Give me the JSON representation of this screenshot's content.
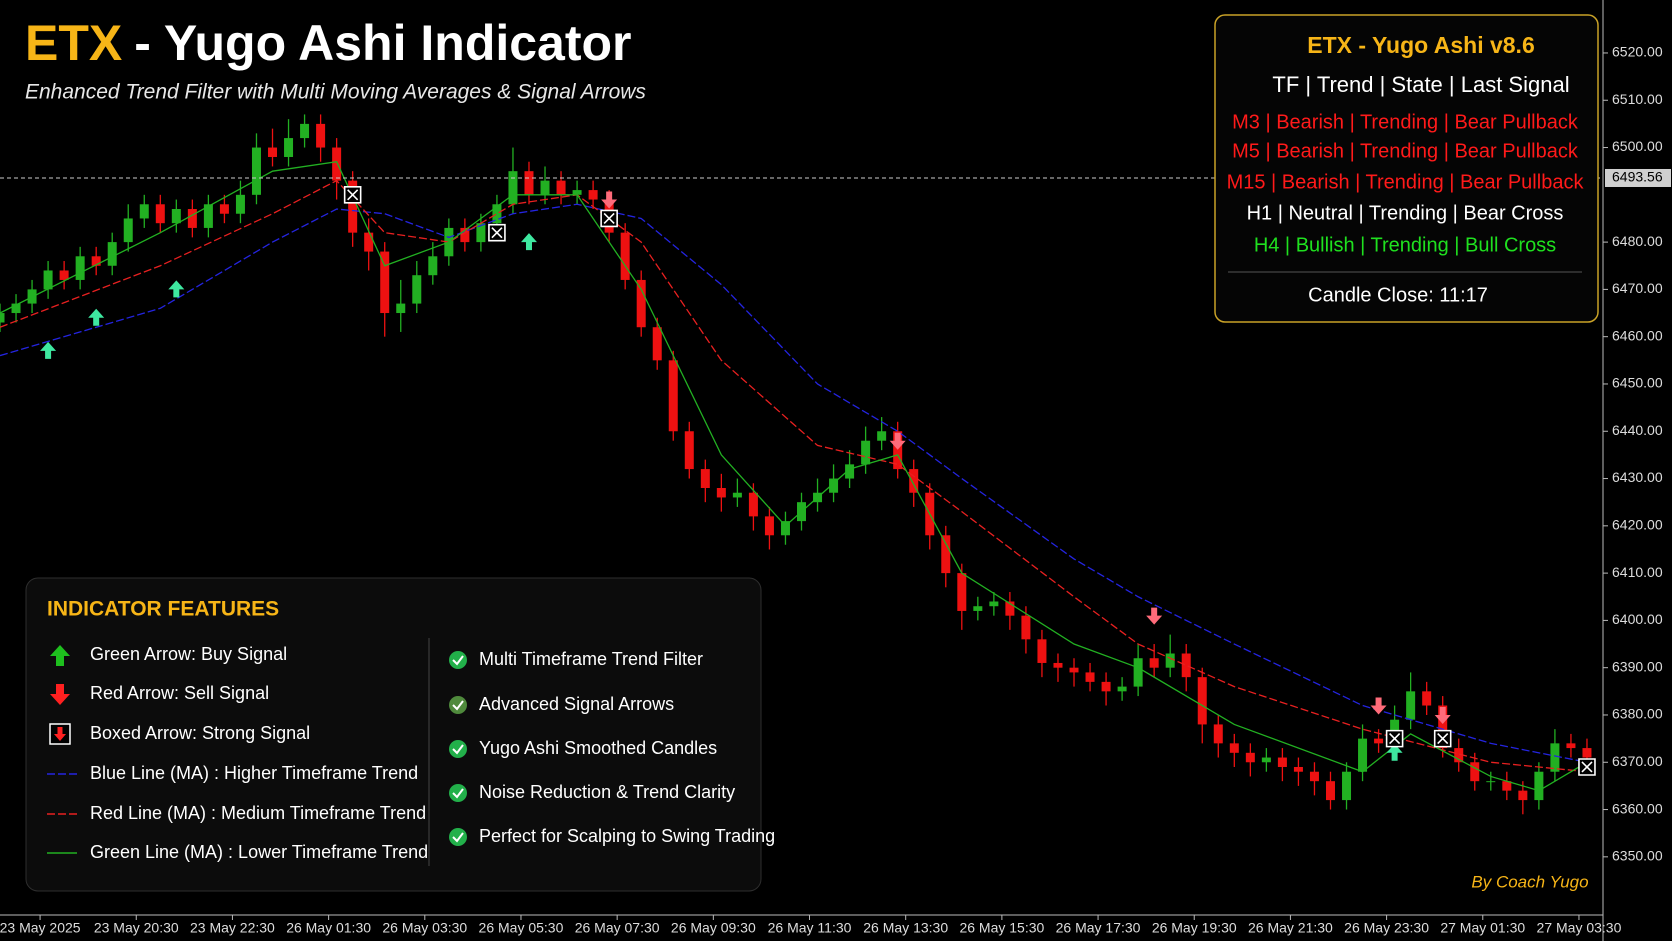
{
  "chart_data": {
    "type": "candlestick",
    "title_highlight": "ETX",
    "title": "- Yugo Ashi Indicator",
    "subtitle": "Enhanced Trend Filter with Multi Moving Averages & Signal Arrows",
    "up_color": "#22b022",
    "down_color": "#ee1111",
    "x": [
      0,
      1,
      2,
      3,
      4,
      5,
      6,
      7,
      8,
      9,
      10,
      11,
      12,
      13,
      14,
      15,
      16,
      17,
      18,
      19,
      20,
      21,
      22,
      23,
      24,
      25,
      26,
      27,
      28,
      29,
      30,
      31,
      32,
      33,
      34,
      35,
      36,
      37,
      38,
      39,
      40,
      41,
      42,
      43,
      44,
      45,
      46,
      47,
      48,
      49,
      50,
      51,
      52,
      53,
      54,
      55,
      56,
      57,
      58,
      59,
      60,
      61,
      62,
      63,
      64,
      65,
      66,
      67,
      68,
      69,
      70,
      71,
      72,
      73,
      74,
      75,
      76,
      77,
      78,
      79,
      80,
      81,
      82,
      83,
      84,
      85,
      86,
      87,
      88,
      89,
      90,
      91,
      92,
      93,
      94,
      95,
      96,
      97,
      98,
      99
    ],
    "open": [
      6463,
      6465,
      6467,
      6470,
      6474,
      6472,
      6477,
      6475,
      6480,
      6485,
      6488,
      6484,
      6487,
      6483,
      6488,
      6486,
      6490,
      6500,
      6498,
      6502,
      6505,
      6500,
      6493,
      6482,
      6478,
      6465,
      6467,
      6473,
      6477,
      6483,
      6480,
      6484,
      6488,
      6495,
      6490,
      6493,
      6490,
      6491,
      6489,
      6482,
      6472,
      6462,
      6455,
      6440,
      6432,
      6428,
      6426,
      6427,
      6422,
      6418,
      6421,
      6425,
      6427,
      6430,
      6433,
      6438,
      6440,
      6432,
      6427,
      6418,
      6410,
      6402,
      6403,
      6404,
      6401,
      6396,
      6391,
      6390,
      6389,
      6387,
      6385,
      6386,
      6392,
      6390,
      6393,
      6388,
      6378,
      6374,
      6372,
      6370,
      6371,
      6369,
      6368,
      6366,
      6362,
      6368,
      6375,
      6374,
      6379,
      6385,
      6382,
      6373,
      6370,
      6366,
      6366,
      6364,
      6362,
      6368,
      6374,
      6373
    ],
    "high": [
      6467,
      6469,
      6472,
      6476,
      6476,
      6479,
      6479,
      6482,
      6488,
      6490,
      6490,
      6489,
      6489,
      6490,
      6490,
      6493,
      6503,
      6504,
      6506,
      6507,
      6507,
      6502,
      6495,
      6485,
      6480,
      6472,
      6476,
      6480,
      6485,
      6485,
      6486,
      6490,
      6500,
      6497,
      6496,
      6495,
      6493,
      6493,
      6491,
      6484,
      6474,
      6464,
      6457,
      6442,
      6434,
      6431,
      6430,
      6429,
      6424,
      6423,
      6427,
      6430,
      6433,
      6436,
      6441,
      6443,
      6442,
      6434,
      6429,
      6420,
      6412,
      6405,
      6406,
      6406,
      6403,
      6398,
      6393,
      6392,
      6391,
      6389,
      6388,
      6395,
      6395,
      6397,
      6395,
      6390,
      6380,
      6376,
      6374,
      6373,
      6373,
      6371,
      6370,
      6368,
      6370,
      6378,
      6377,
      6382,
      6389,
      6387,
      6384,
      6375,
      6372,
      6368,
      6368,
      6366,
      6370,
      6377,
      6376,
      6375
    ],
    "low": [
      6461,
      6463,
      6465,
      6468,
      6470,
      6470,
      6473,
      6473,
      6478,
      6483,
      6482,
      6482,
      6481,
      6481,
      6484,
      6484,
      6488,
      6496,
      6496,
      6500,
      6497,
      6489,
      6479,
      6474,
      6460,
      6461,
      6465,
      6471,
      6475,
      6478,
      6478,
      6482,
      6486,
      6488,
      6488,
      6488,
      6488,
      6487,
      6480,
      6470,
      6460,
      6453,
      6438,
      6430,
      6425,
      6423,
      6424,
      6419,
      6415,
      6416,
      6419,
      6423,
      6425,
      6428,
      6431,
      6436,
      6430,
      6424,
      6415,
      6407,
      6398,
      6400,
      6401,
      6398,
      6393,
      6388,
      6387,
      6386,
      6385,
      6382,
      6383,
      6384,
      6388,
      6388,
      6385,
      6374,
      6371,
      6369,
      6367,
      6368,
      6366,
      6365,
      6363,
      6360,
      6360,
      6366,
      6372,
      6372,
      6377,
      6380,
      6371,
      6368,
      6364,
      6364,
      6362,
      6359,
      6360,
      6366,
      6371,
      6369
    ],
    "close": [
      6465,
      6467,
      6470,
      6474,
      6472,
      6477,
      6475,
      6480,
      6485,
      6488,
      6484,
      6487,
      6483,
      6488,
      6486,
      6490,
      6500,
      6498,
      6502,
      6505,
      6500,
      6493,
      6482,
      6478,
      6465,
      6467,
      6473,
      6477,
      6483,
      6480,
      6484,
      6488,
      6495,
      6490,
      6493,
      6490,
      6491,
      6489,
      6482,
      6472,
      6462,
      6455,
      6440,
      6432,
      6428,
      6426,
      6427,
      6422,
      6418,
      6421,
      6425,
      6427,
      6430,
      6433,
      6438,
      6440,
      6432,
      6427,
      6418,
      6410,
      6402,
      6403,
      6404,
      6401,
      6396,
      6391,
      6390,
      6389,
      6387,
      6385,
      6386,
      6392,
      6390,
      6393,
      6388,
      6378,
      6374,
      6372,
      6370,
      6371,
      6369,
      6368,
      6366,
      6362,
      6368,
      6375,
      6374,
      6379,
      6385,
      6382,
      6373,
      6370,
      6366,
      6366,
      6364,
      6362,
      6368,
      6374,
      6373,
      6371
    ],
    "series": [
      {
        "name": "Blue Line (MA) : Higher Timeframe Trend",
        "color": "#2424e0",
        "dashed": true,
        "x": [
          0,
          10,
          17,
          21,
          24,
          28,
          32,
          36,
          40,
          45,
          51,
          56,
          60,
          67,
          71,
          77,
          85,
          93,
          99
        ],
        "values": [
          6456,
          6466,
          6480,
          6487,
          6486,
          6481,
          6486,
          6488,
          6485,
          6471,
          6450,
          6440,
          6430,
          6413,
          6405,
          6395,
          6382,
          6374,
          6370
        ]
      },
      {
        "name": "Red Line (MA) : Medium Timeframe Trend",
        "color": "#e82020",
        "dashed": true,
        "x": [
          0,
          10,
          17,
          21,
          24,
          28,
          32,
          36,
          40,
          45,
          51,
          56,
          60,
          67,
          71,
          77,
          85,
          93,
          99
        ],
        "values": [
          6462,
          6475,
          6486,
          6493,
          6482,
          6480,
          6488,
          6490,
          6480,
          6455,
          6437,
          6433,
          6423,
          6405,
          6395,
          6386,
          6377,
          6370,
          6368
        ]
      },
      {
        "name": "Green Line (MA) : Lower Timeframe Trend",
        "color": "#22b022",
        "dashed": false,
        "x": [
          0,
          10,
          17,
          21,
          24,
          28,
          32,
          36,
          40,
          45,
          49,
          53,
          56,
          60,
          67,
          71,
          77,
          85,
          88,
          93,
          96,
          99
        ],
        "values": [
          6465,
          6482,
          6495,
          6497,
          6475,
          6480,
          6490,
          6490,
          6470,
          6435,
          6420,
          6432,
          6435,
          6410,
          6395,
          6390,
          6378,
          6368,
          6376,
          6367,
          6364,
          6370
        ]
      }
    ],
    "buy_signals": {
      "color": "#3ee8a0",
      "x": [
        3,
        6,
        11,
        33,
        87
      ],
      "y": [
        6457,
        6464,
        6470,
        6480,
        6372
      ]
    },
    "sell_signals": {
      "color": "#ff6b7a",
      "x": [
        38,
        56,
        72,
        86,
        90
      ],
      "y": [
        6489,
        6438,
        6401,
        6382,
        6380
      ]
    },
    "boxed_signals": {
      "x": [
        22,
        31,
        38,
        87,
        90,
        99
      ],
      "y": [
        6490,
        6482,
        6485,
        6375,
        6375,
        6369
      ]
    },
    "current_price": 6493.56,
    "xlim": [
      0,
      100
    ],
    "ylim": [
      6337.7,
      6531.2
    ],
    "xticks": [
      {
        "value": 2.5,
        "label": "23 May 2025"
      },
      {
        "value": 8.5,
        "label": "23 May 20:30"
      },
      {
        "value": 14.5,
        "label": "23 May 22:30"
      },
      {
        "value": 20.5,
        "label": "26 May 01:30"
      },
      {
        "value": 26.5,
        "label": "26 May 03:30"
      },
      {
        "value": 32.5,
        "label": "26 May 05:30"
      },
      {
        "value": 38.5,
        "label": "26 May 07:30"
      },
      {
        "value": 44.5,
        "label": "26 May 09:30"
      },
      {
        "value": 50.5,
        "label": "26 May 11:30"
      },
      {
        "value": 56.5,
        "label": "26 May 13:30"
      },
      {
        "value": 62.5,
        "label": "26 May 15:30"
      },
      {
        "value": 68.5,
        "label": "26 May 17:30"
      },
      {
        "value": 74.5,
        "label": "26 May 19:30"
      },
      {
        "value": 80.5,
        "label": "26 May 21:30"
      },
      {
        "value": 86.5,
        "label": "26 May 23:30"
      },
      {
        "value": 92.5,
        "label": "27 May 01:30"
      },
      {
        "value": 98.5,
        "label": "27 May 03:30"
      }
    ],
    "yticks": [
      {
        "value": 6350,
        "label": "6350.00"
      },
      {
        "value": 6360,
        "label": "6360.00"
      },
      {
        "value": 6370,
        "label": "6370.00"
      },
      {
        "value": 6380,
        "label": "6380.00"
      },
      {
        "value": 6390,
        "label": "6390.00"
      },
      {
        "value": 6400,
        "label": "6400.00"
      },
      {
        "value": 6410,
        "label": "6410.00"
      },
      {
        "value": 6420,
        "label": "6420.00"
      },
      {
        "value": 6430,
        "label": "6430.00"
      },
      {
        "value": 6440,
        "label": "6440.00"
      },
      {
        "value": 6450,
        "label": "6450.00"
      },
      {
        "value": 6460,
        "label": "6460.00"
      },
      {
        "value": 6470,
        "label": "6470.00"
      },
      {
        "value": 6480,
        "label": "6480.00"
      },
      {
        "value": 6500,
        "label": "6500.00"
      },
      {
        "value": 6510,
        "label": "6510.00"
      },
      {
        "value": 6520,
        "label": "6520.00"
      }
    ]
  },
  "info_panel": {
    "title": "ETX - Yugo Ashi v8.6",
    "header": "TF | Trend | State | Last Signal",
    "rows": [
      {
        "text": "M3 | Bearish | Trending | Bear Pullback",
        "color": "#ff1a1a"
      },
      {
        "text": "M5 | Bearish | Trending | Bear Pullback",
        "color": "#ff1a1a"
      },
      {
        "text": "M15 | Bearish | Trending | Bear Pullback",
        "color": "#ff1a1a"
      },
      {
        "text": "H1 | Neutral | Trending | Bear Cross",
        "color": "#ffffff"
      },
      {
        "text": "H4 | Bullish | Trending | Bull Cross",
        "color": "#1fe01f"
      }
    ],
    "footer": "Candle Close: 11:17"
  },
  "features": {
    "title": "INDICATOR FEATURES",
    "signals": [
      "Green Arrow: Buy Signal",
      "Red Arrow: Sell Signal",
      "Boxed Arrow: Strong Signal"
    ],
    "highlights": [
      "Multi Timeframe Trend Filter",
      "Advanced Signal Arrows",
      "Yugo Ashi Smoothed Candles",
      "Noise Reduction & Trend Clarity",
      "Perfect for Scalping to Swing Trading"
    ]
  },
  "credit": "By Coach Yugo"
}
